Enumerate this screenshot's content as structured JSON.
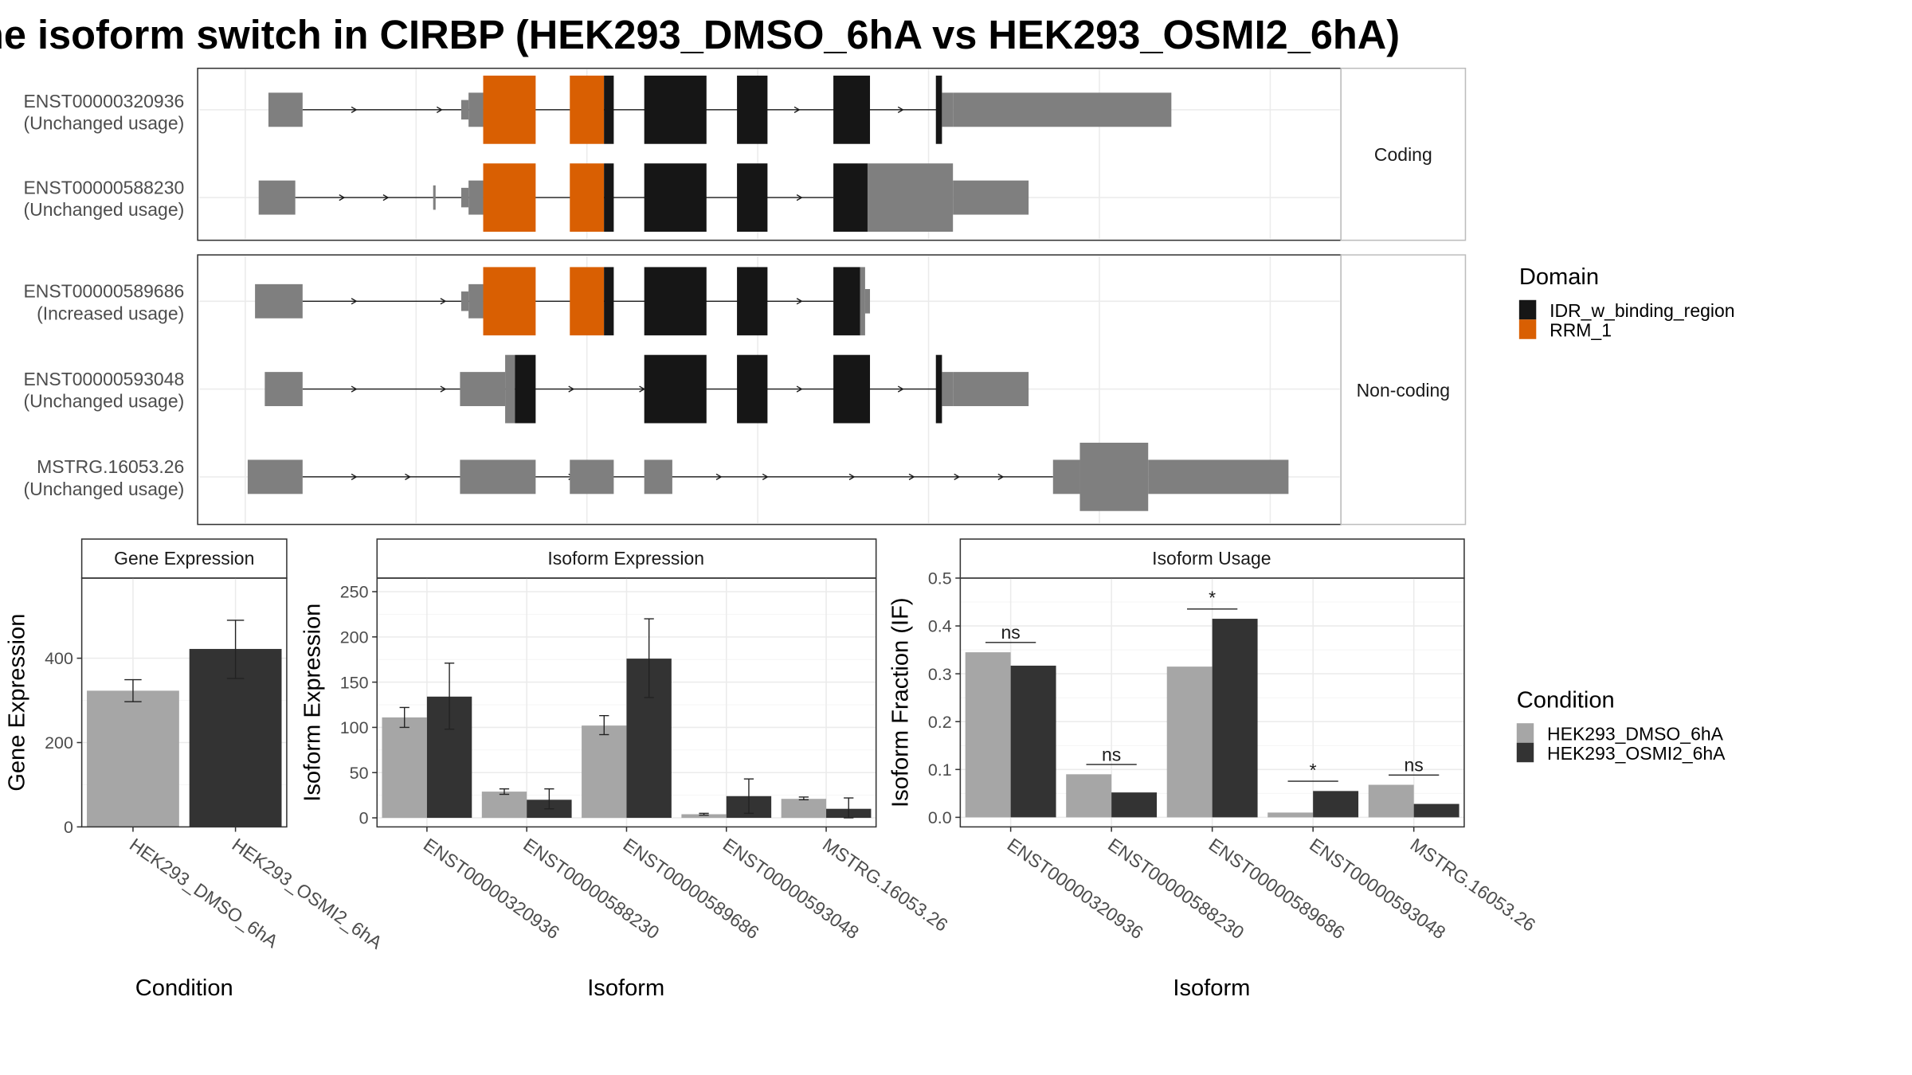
{
  "title": "he isoform switch in CIRBP (HEK293_DMSO_6hA vs HEK293_OSMI2_6hA)",
  "structure": {
    "panels": [
      {
        "label": "Coding",
        "isoforms": [
          {
            "id": "ENST00000320936",
            "usage": "(Unchanged usage)"
          },
          {
            "id": "ENST00000588230",
            "usage": "(Unchanged usage)"
          }
        ]
      },
      {
        "label": "Non-coding",
        "isoforms": [
          {
            "id": "ENST00000589686",
            "usage": "(Increased usage)"
          },
          {
            "id": "ENST00000593048",
            "usage": "(Unchanged usage)"
          },
          {
            "id": "MSTRG.16053.26",
            "usage": "(Unchanged usage)"
          }
        ]
      }
    ],
    "domain_legend": {
      "title": "Domain",
      "items": [
        {
          "label": "IDR_w_binding_region",
          "color": "#161616"
        },
        {
          "label": "RRM_1",
          "color": "#d95f02"
        }
      ]
    },
    "colors": {
      "utr": "#7f7f7f",
      "idr": "#161616",
      "rrm": "#d95f02"
    }
  },
  "condition_legend": {
    "title": "Condition",
    "items": [
      {
        "label": "HEK293_DMSO_6hA",
        "color": "#a6a6a6"
      },
      {
        "label": "HEK293_OSMI2_6hA",
        "color": "#333333"
      }
    ]
  },
  "chart_data": [
    {
      "type": "bar",
      "title": "Gene Expression",
      "xlabel": "Condition",
      "ylabel": "Gene Expression",
      "categories": [
        "HEK293_DMSO_6hA",
        "HEK293_OSMI2_6hA"
      ],
      "values": [
        323,
        422
      ],
      "error_low": [
        297,
        352
      ],
      "error_high": [
        349,
        490
      ],
      "ylim": [
        0,
        590
      ],
      "yticks": [
        0,
        200,
        400
      ],
      "grid": true
    },
    {
      "type": "bar",
      "title": "Isoform Expression",
      "xlabel": "Isoform",
      "ylabel": "Isoform Expression",
      "categories": [
        "ENST00000320936",
        "ENST00000588230",
        "ENST00000589686",
        "ENST00000593048",
        "MSTRG.16053.26"
      ],
      "series": [
        {
          "name": "HEK293_DMSO_6hA",
          "values": [
            111,
            29,
            102,
            4,
            21
          ],
          "error_low": [
            100,
            26,
            92,
            3,
            20
          ],
          "error_high": [
            122,
            32,
            113,
            5,
            23
          ]
        },
        {
          "name": "HEK293_OSMI2_6hA",
          "values": [
            134,
            20,
            176,
            24,
            10
          ],
          "error_low": [
            98,
            10,
            133,
            5,
            0
          ],
          "error_high": [
            171,
            32,
            220,
            43,
            22
          ]
        }
      ],
      "ylim": [
        -10,
        265
      ],
      "yticks": [
        0,
        50,
        100,
        150,
        200,
        250
      ],
      "grid": true
    },
    {
      "type": "bar",
      "title": "Isoform Usage",
      "xlabel": "Isoform",
      "ylabel": "Isoform Fraction (IF)",
      "categories": [
        "ENST00000320936",
        "ENST00000588230",
        "ENST00000589686",
        "ENST00000593048",
        "MSTRG.16053.26"
      ],
      "series": [
        {
          "name": "HEK293_DMSO_6hA",
          "values": [
            0.345,
            0.09,
            0.315,
            0.01,
            0.068
          ]
        },
        {
          "name": "HEK293_OSMI2_6hA",
          "values": [
            0.317,
            0.052,
            0.415,
            0.055,
            0.028
          ]
        }
      ],
      "significance": [
        "ns",
        "ns",
        "*",
        "*",
        "ns"
      ],
      "ylim": [
        -0.02,
        0.5
      ],
      "yticks": [
        0.0,
        0.1,
        0.2,
        0.3,
        0.4,
        0.5
      ],
      "grid": true
    }
  ]
}
